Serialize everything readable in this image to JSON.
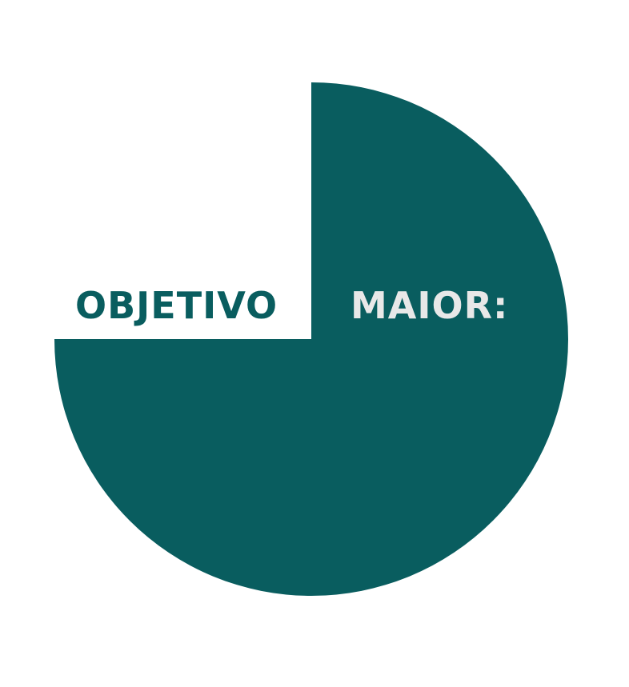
{
  "headline": {
    "word_left": "OBJETIVO",
    "word_right": "MAIOR:"
  },
  "colors": {
    "background": "#ffffff",
    "accent_teal": "#095d5f",
    "light_text": "#e8e8e8"
  },
  "graphic": {
    "shape": "three-quarter disc",
    "missing_quadrant": "top-left"
  }
}
